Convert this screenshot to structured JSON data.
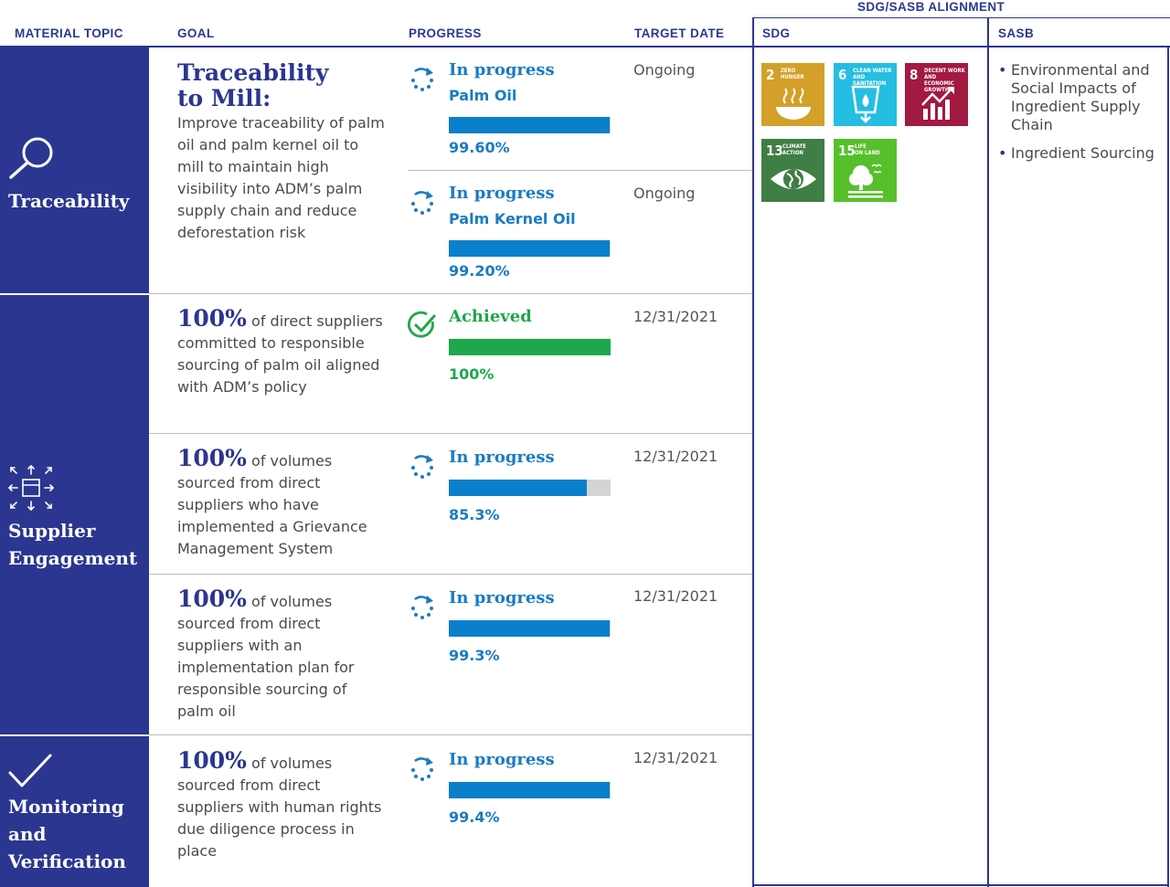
{
  "headers": {
    "material_topic": "MATERIAL TOPIC",
    "goal": "GOAL",
    "progress": "PROGRESS",
    "target_date": "TARGET DATE",
    "alignment": "SDG/SASB ALIGNMENT",
    "sdg": "SDG",
    "sasb": "SASB"
  },
  "topics": {
    "traceability": "Traceability",
    "supplier_1": "Supplier",
    "supplier_2": "Engagement",
    "monitoring_1": "Monitoring",
    "monitoring_2": "and",
    "monitoring_3": "Verification"
  },
  "goals": {
    "g1_big": "Traceability to Mill:",
    "g1_text": "Improve traceability of palm oil and palm kernel oil to mill to maintain high visibility into ADM’s palm supply chain and reduce deforestation risk",
    "g2_big": "100%",
    "g2_text": "of direct suppliers committed to responsible sourcing of palm oil aligned with ADM’s policy",
    "g3_big": "100%",
    "g3_text": "of volumes sourced from direct suppliers who have implemented a Grievance Management System",
    "g4_big": "100%",
    "g4_text": "of volumes sourced from direct suppliers with an implementation plan for responsible sourcing of palm oil",
    "g5_big": "100%",
    "g5_text": "of volumes sourced from direct suppliers with human rights due diligence process in place"
  },
  "progress": {
    "p1": {
      "status": "In progress",
      "sub": "Palm Oil",
      "value": 99.6,
      "pct": "99.60%",
      "date": "Ongoing"
    },
    "p2": {
      "status": "In progress",
      "sub": "Palm Kernel Oil",
      "value": 99.2,
      "pct": "99.20%",
      "date": "Ongoing"
    },
    "p3": {
      "status": "Achieved",
      "value": 100,
      "pct": "100%",
      "date": "12/31/2021"
    },
    "p4": {
      "status": "In progress",
      "value": 85.3,
      "pct": "85.3%",
      "date": "12/31/2021"
    },
    "p5": {
      "status": "In progress",
      "value": 99.3,
      "pct": "99.3%",
      "date": "12/31/2021"
    },
    "p6": {
      "status": "In progress",
      "value": 99.4,
      "pct": "99.4%",
      "date": "12/31/2021"
    }
  },
  "colors": {
    "navy": "#2b3690",
    "progress_blue": "#0a7fcc",
    "achieved_green": "#1ea84b",
    "sdg2": "#d3a029",
    "sdg6": "#26bde2",
    "sdg8": "#a21942",
    "sdg13": "#3f7e44",
    "sdg15": "#56c02b"
  },
  "sdgs": {
    "s2": {
      "num": "2",
      "l1": "ZERO",
      "l2": "HUNGER"
    },
    "s6": {
      "num": "6",
      "l1": "CLEAN WATER",
      "l2": "AND SANITATION"
    },
    "s8": {
      "num": "8",
      "l1": "DECENT WORK AND",
      "l2": "ECONOMIC GROWTH"
    },
    "s13": {
      "num": "13",
      "l1": "CLIMATE",
      "l2": "ACTION"
    },
    "s15": {
      "num": "15",
      "l1": "LIFE",
      "l2": "ON LAND"
    }
  },
  "sasb": {
    "item1": "Environmental and Social Impacts of Ingredient Supply Chain",
    "item2": "Ingredient Sourcing"
  }
}
